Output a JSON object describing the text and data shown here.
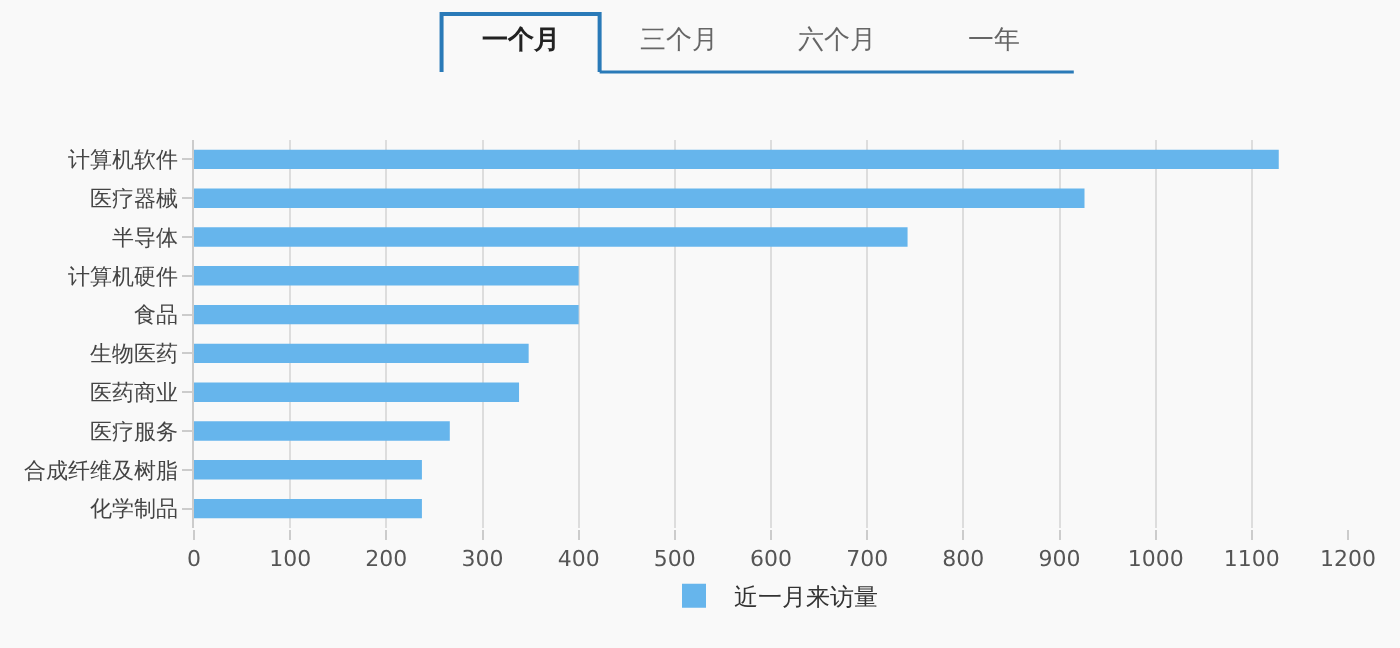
{
  "chart_data": {
    "type": "bar",
    "orientation": "horizontal",
    "categories": [
      "计算机软件",
      "医疗器械",
      "半导体",
      "计算机硬件",
      "食品",
      "生物医药",
      "医药商业",
      "医疗服务",
      "合成纤维及树脂",
      "化学制品"
    ],
    "series": [
      {
        "name": "近一月来访量",
        "color": "#66b5ec",
        "values": [
          1128,
          926,
          742,
          400,
          400,
          348,
          338,
          266,
          237,
          237
        ]
      }
    ],
    "xlim": [
      0,
      1200
    ],
    "xticks": [
      0,
      100,
      200,
      300,
      400,
      500,
      600,
      700,
      800,
      900,
      1000,
      1100,
      1200
    ],
    "grid": "x",
    "legend": "bottom",
    "annotations": [
      "一个月",
      "三个月",
      "六个月",
      "一年"
    ]
  }
}
